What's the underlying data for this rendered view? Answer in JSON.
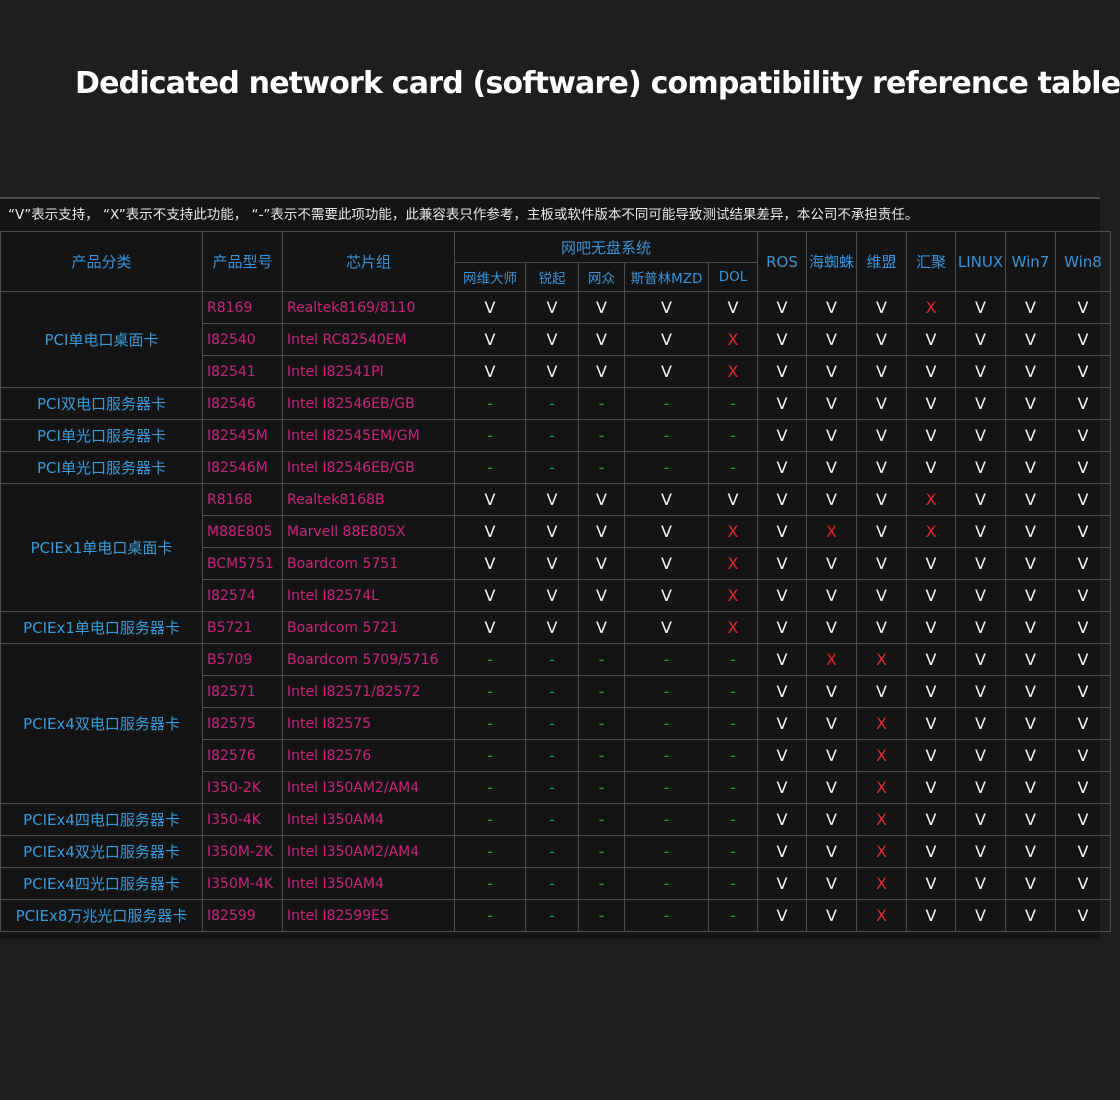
{
  "title": "Dedicated network card (software) compatibility reference table",
  "note": "“V”表示支持， “X”表示不支持此功能， “-”表示不需要此项功能，此兼容表只作参考，主板或软件版本不同可能导致测试结果差异，本公司不承担责任。",
  "mark_colors": {
    "V": "#f2f2f2",
    "X": "#e0262b",
    "-": "#1f9a45"
  },
  "headers": {
    "category": "产品分类",
    "model": "产品型号",
    "chipset": "芯片组",
    "group": "网吧无盘系统",
    "group_columns": [
      "网维大师",
      "锐起",
      "网众",
      "斯普林MZD",
      "DOL"
    ],
    "other_columns": [
      "ROS",
      "海蜘蛛",
      "维盟",
      "汇聚",
      "LINUX",
      "Win7",
      "Win8"
    ]
  },
  "groups": [
    {
      "category": "PCI单电口桌面卡",
      "rows": [
        {
          "model": "R8169",
          "chipset": "Realtek8169/8110",
          "marks": [
            "V",
            "V",
            "V",
            "V",
            "V",
            "V",
            "V",
            "V",
            "X",
            "V",
            "V",
            "V"
          ]
        },
        {
          "model": "I82540",
          "chipset": "Intel RC82540EM",
          "marks": [
            "V",
            "V",
            "V",
            "V",
            "X",
            "V",
            "V",
            "V",
            "V",
            "V",
            "V",
            "V"
          ]
        },
        {
          "model": "I82541",
          "chipset": "Intel I82541PI",
          "marks": [
            "V",
            "V",
            "V",
            "V",
            "X",
            "V",
            "V",
            "V",
            "V",
            "V",
            "V",
            "V"
          ]
        }
      ]
    },
    {
      "category": "PCI双电口服务器卡",
      "rows": [
        {
          "model": "I82546",
          "chipset": "Intel I82546EB/GB",
          "marks": [
            "-",
            "-",
            "-",
            "-",
            "-",
            "V",
            "V",
            "V",
            "V",
            "V",
            "V",
            "V"
          ]
        }
      ]
    },
    {
      "category": "PCI单光口服务器卡",
      "rows": [
        {
          "model": "I82545M",
          "chipset": "Intel I82545EM/GM",
          "marks": [
            "-",
            "-",
            "-",
            "-",
            "-",
            "V",
            "V",
            "V",
            "V",
            "V",
            "V",
            "V"
          ]
        }
      ]
    },
    {
      "category": "PCI单光口服务器卡",
      "rows": [
        {
          "model": "I82546M",
          "chipset": "Intel I82546EB/GB",
          "marks": [
            "-",
            "-",
            "-",
            "-",
            "-",
            "V",
            "V",
            "V",
            "V",
            "V",
            "V",
            "V"
          ]
        }
      ]
    },
    {
      "category": "PCIEx1单电口桌面卡",
      "rows": [
        {
          "model": "R8168",
          "chipset": "Realtek8168B",
          "marks": [
            "V",
            "V",
            "V",
            "V",
            "V",
            "V",
            "V",
            "V",
            "X",
            "V",
            "V",
            "V"
          ]
        },
        {
          "model": "M88E805",
          "chipset": "Marvell 88E805X",
          "marks": [
            "V",
            "V",
            "V",
            "V",
            "X",
            "V",
            "X",
            "V",
            "X",
            "V",
            "V",
            "V"
          ]
        },
        {
          "model": "BCM5751",
          "chipset": "Boardcom 5751",
          "marks": [
            "V",
            "V",
            "V",
            "V",
            "X",
            "V",
            "V",
            "V",
            "V",
            "V",
            "V",
            "V"
          ]
        },
        {
          "model": "I82574",
          "chipset": "Intel I82574L",
          "marks": [
            "V",
            "V",
            "V",
            "V",
            "X",
            "V",
            "V",
            "V",
            "V",
            "V",
            "V",
            "V"
          ]
        }
      ]
    },
    {
      "category": "PCIEx1单电口服务器卡",
      "rows": [
        {
          "model": "B5721",
          "chipset": "Boardcom 5721",
          "marks": [
            "V",
            "V",
            "V",
            "V",
            "X",
            "V",
            "V",
            "V",
            "V",
            "V",
            "V",
            "V"
          ]
        }
      ]
    },
    {
      "category": "PCIEx4双电口服务器卡",
      "rows": [
        {
          "model": "B5709",
          "chipset": "Boardcom 5709/5716",
          "marks": [
            "-",
            "-",
            "-",
            "-",
            "-",
            "V",
            "X",
            "X",
            "V",
            "V",
            "V",
            "V"
          ]
        },
        {
          "model": "I82571",
          "chipset": "Intel I82571/82572",
          "marks": [
            "-",
            "-",
            "-",
            "-",
            "-",
            "V",
            "V",
            "V",
            "V",
            "V",
            "V",
            "V"
          ]
        },
        {
          "model": "I82575",
          "chipset": "Intel I82575",
          "marks": [
            "-",
            "-",
            "-",
            "-",
            "-",
            "V",
            "V",
            "X",
            "V",
            "V",
            "V",
            "V"
          ]
        },
        {
          "model": "I82576",
          "chipset": "Intel I82576",
          "marks": [
            "-",
            "-",
            "-",
            "-",
            "-",
            "V",
            "V",
            "X",
            "V",
            "V",
            "V",
            "V"
          ]
        },
        {
          "model": "I350-2K",
          "chipset": "Intel I350AM2/AM4",
          "marks": [
            "-",
            "-",
            "-",
            "-",
            "-",
            "V",
            "V",
            "X",
            "V",
            "V",
            "V",
            "V"
          ]
        }
      ]
    },
    {
      "category": "PCIEx4四电口服务器卡",
      "rows": [
        {
          "model": "I350-4K",
          "chipset": "Intel I350AM4",
          "marks": [
            "-",
            "-",
            "-",
            "-",
            "-",
            "V",
            "V",
            "X",
            "V",
            "V",
            "V",
            "V"
          ]
        }
      ]
    },
    {
      "category": "PCIEx4双光口服务器卡",
      "rows": [
        {
          "model": "I350M-2K",
          "chipset": "Intel I350AM2/AM4",
          "marks": [
            "-",
            "-",
            "-",
            "-",
            "-",
            "V",
            "V",
            "X",
            "V",
            "V",
            "V",
            "V"
          ]
        }
      ]
    },
    {
      "category": "PCIEx4四光口服务器卡",
      "rows": [
        {
          "model": "I350M-4K",
          "chipset": "Intel I350AM4",
          "marks": [
            "-",
            "-",
            "-",
            "-",
            "-",
            "V",
            "V",
            "X",
            "V",
            "V",
            "V",
            "V"
          ]
        }
      ]
    },
    {
      "category": "PCIEx8万兆光口服务器卡",
      "rows": [
        {
          "model": "I82599",
          "chipset": "Intel I82599ES",
          "marks": [
            "-",
            "-",
            "-",
            "-",
            "-",
            "V",
            "V",
            "X",
            "V",
            "V",
            "V",
            "V"
          ]
        }
      ]
    }
  ]
}
